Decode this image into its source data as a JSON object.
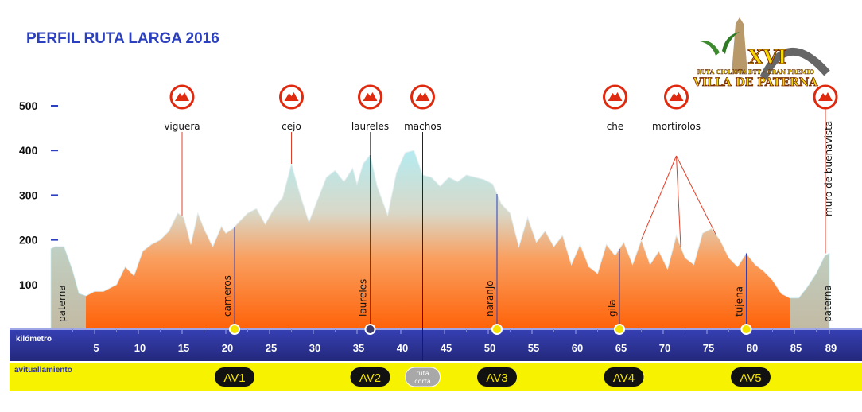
{
  "chart_data": {
    "type": "area",
    "title": "PERFIL RUTA LARGA 2016",
    "x_axis_label": "kilómetro",
    "x_ticks": [
      5,
      10,
      15,
      20,
      25,
      30,
      35,
      40,
      45,
      50,
      55,
      60,
      65,
      70,
      75,
      80,
      85,
      89
    ],
    "y_ticks": [
      100,
      200,
      300,
      400,
      500
    ],
    "xlim": [
      0,
      90
    ],
    "ylim": [
      0,
      500
    ],
    "x": [
      0,
      0.5,
      1.5,
      2.5,
      3.2,
      4.0,
      4.5,
      5.0,
      6.0,
      7.5,
      8.5,
      9.5,
      10.5,
      11.5,
      12.5,
      13.5,
      14.5,
      15.2,
      16.0,
      16.8,
      17.5,
      18.5,
      19.5,
      20.0,
      20.8,
      21.5,
      22.5,
      23.5,
      24.5,
      25.5,
      26.5,
      27.5,
      28.5,
      29.5,
      30.5,
      31.5,
      32.5,
      33.5,
      34.5,
      35.0,
      35.7,
      36.5,
      37.3,
      38.5,
      39.5,
      40.5,
      41.5,
      42.5,
      43.5,
      44.5,
      45.5,
      46.5,
      47.5,
      48.5,
      49.5,
      50.5,
      51.5,
      52.5,
      53.5,
      54.5,
      55.5,
      56.5,
      57.5,
      58.5,
      59.5,
      60.5,
      61.5,
      62.5,
      63.5,
      64.5,
      65.5,
      66.5,
      67.5,
      68.5,
      69.5,
      70.5,
      71.5,
      72.5,
      73.5,
      74.5,
      75.5,
      76.5,
      77.5,
      78.5,
      79.5,
      80.5,
      81.5,
      82.5,
      83.5,
      84.5,
      85.5,
      86.5,
      87.5,
      88.5,
      89.0
    ],
    "y": [
      180,
      185,
      185,
      130,
      80,
      75,
      80,
      85,
      85,
      100,
      140,
      120,
      175,
      190,
      200,
      220,
      260,
      250,
      190,
      260,
      225,
      185,
      230,
      215,
      225,
      240,
      260,
      270,
      235,
      270,
      295,
      370,
      300,
      240,
      290,
      340,
      355,
      330,
      360,
      325,
      370,
      390,
      320,
      255,
      350,
      395,
      400,
      345,
      340,
      320,
      340,
      330,
      345,
      340,
      335,
      325,
      280,
      260,
      185,
      250,
      195,
      220,
      185,
      210,
      145,
      190,
      140,
      125,
      190,
      165,
      195,
      145,
      200,
      145,
      175,
      135,
      210,
      160,
      145,
      215,
      225,
      200,
      160,
      140,
      170,
      145,
      130,
      110,
      80,
      70,
      70,
      95,
      125,
      165,
      170
    ],
    "climbs": [
      {
        "name": "viguera",
        "km": 15
      },
      {
        "name": "cejo",
        "km": 27.5
      },
      {
        "name": "laureles",
        "km": 36.5
      },
      {
        "name": "machos",
        "km": 42.5
      },
      {
        "name": "che",
        "km": 64.5
      },
      {
        "name": "mortirolos",
        "km": 71.5
      },
      {
        "name": "muro de buenavista",
        "km": 89
      }
    ],
    "places": [
      {
        "name": "paterna",
        "km": 1
      },
      {
        "name": "carneros",
        "km": 21
      },
      {
        "name": "laureles",
        "km": 36.5
      },
      {
        "name": "naranjo",
        "km": 51
      },
      {
        "name": "gila",
        "km": 65
      },
      {
        "name": "tujena",
        "km": 79.5
      },
      {
        "name": "paterna",
        "km": 88.5
      }
    ],
    "avituallamiento_label": "avituallamiento",
    "aid_stations": [
      {
        "label": "AV1",
        "km": 21
      },
      {
        "label": "AV2",
        "km": 36.5
      },
      {
        "label": "AV3",
        "km": 51
      },
      {
        "label": "AV4",
        "km": 65.5
      },
      {
        "label": "AV5",
        "km": 80
      }
    ],
    "ruta_corta": {
      "label_line1": "ruta",
      "label_line2": "corta",
      "km": 42.5
    }
  },
  "logo": {
    "numeral": "XVI",
    "subtitle": "RUTA CICLISTA BTT · GRAN PREMIO",
    "name": "VILLA DE PATERNA"
  },
  "colors": {
    "title": "#2b3fbf",
    "band": "#2d35a3",
    "aid_band": "#f7f200",
    "profile_top": "#aee3ec",
    "profile_bottom": "#ff6a10",
    "climb_icon": "#e02a10"
  }
}
